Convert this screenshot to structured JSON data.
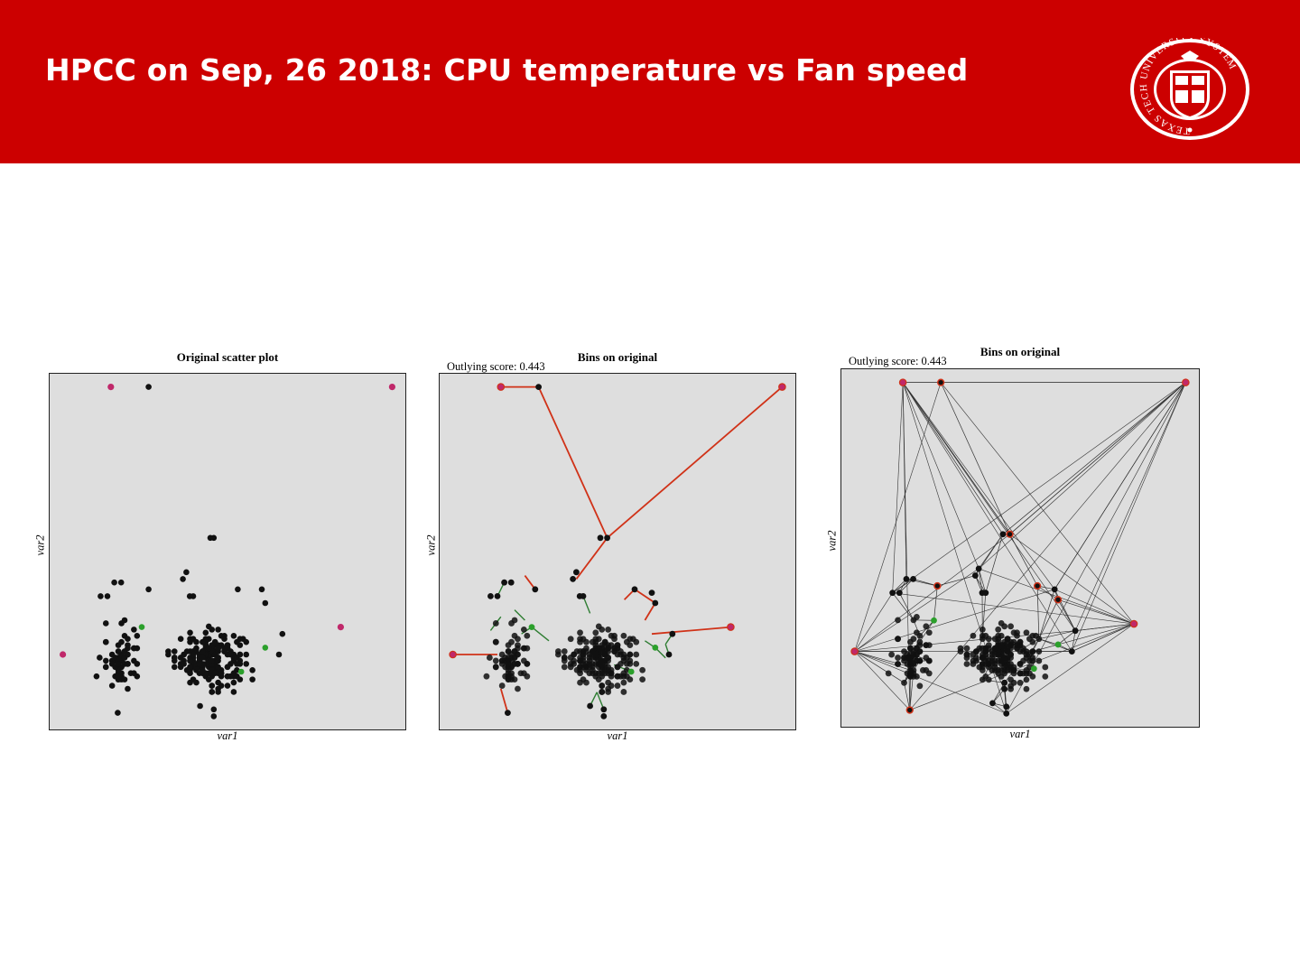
{
  "header": {
    "title": "HPCC on Sep, 26 2018: CPU temperature vs Fan speed",
    "logo": {
      "ring_text": "TEXAS TECH UNIVERSITY SYSTEM",
      "colors": {
        "ring": "#cc0000",
        "background": "#ffffff"
      }
    }
  },
  "colors": {
    "header_bg": "#cc0000",
    "panel_bg": "#dedede",
    "point": "#111111",
    "outlier": "#c0286a",
    "green": "#2ca02c",
    "mst_outlier_edge": "#d03218",
    "mst_edge": "#2e7d32",
    "triangulation_edge": "#333333"
  },
  "chart_data": [
    {
      "type": "scatter",
      "title": "Original scatter plot",
      "xlabel": "var1",
      "ylabel": "var2",
      "xlim": [
        0,
        1
      ],
      "ylim": [
        0,
        1
      ],
      "outliers": [
        [
          0.16,
          0.98
        ],
        [
          0.98,
          0.98
        ],
        [
          0.02,
          0.2
        ],
        [
          0.83,
          0.28
        ]
      ],
      "green_points": [
        [
          0.25,
          0.28
        ],
        [
          0.61,
          0.22
        ],
        [
          0.54,
          0.15
        ]
      ],
      "sparse_points": [
        [
          0.27,
          0.98
        ],
        [
          0.45,
          0.54
        ],
        [
          0.46,
          0.54
        ],
        [
          0.13,
          0.37
        ],
        [
          0.15,
          0.37
        ],
        [
          0.17,
          0.41
        ],
        [
          0.19,
          0.41
        ],
        [
          0.27,
          0.39
        ],
        [
          0.38,
          0.44
        ],
        [
          0.37,
          0.42
        ],
        [
          0.39,
          0.37
        ],
        [
          0.4,
          0.37
        ],
        [
          0.53,
          0.39
        ],
        [
          0.6,
          0.39
        ],
        [
          0.61,
          0.35
        ],
        [
          0.66,
          0.26
        ],
        [
          0.65,
          0.2
        ],
        [
          0.18,
          0.03
        ],
        [
          0.42,
          0.05
        ],
        [
          0.46,
          0.02
        ],
        [
          0.46,
          0.04
        ]
      ],
      "dense_clusters": [
        {
          "center": [
            0.45,
            0.19
          ],
          "spread": [
            0.09,
            0.07
          ],
          "count": 200
        },
        {
          "center": [
            0.19,
            0.19
          ],
          "spread": [
            0.05,
            0.08
          ],
          "count": 75
        }
      ]
    },
    {
      "type": "scatter",
      "title": "Bins on original",
      "subtitle": "Outlying score: 0.443",
      "xlabel": "var1",
      "ylabel": "var2",
      "xlim": [
        0,
        1
      ],
      "ylim": [
        0,
        1
      ],
      "outliers": [
        [
          0.16,
          0.98
        ],
        [
          0.98,
          0.98
        ],
        [
          0.02,
          0.2
        ],
        [
          0.83,
          0.28
        ]
      ],
      "green_points": [
        [
          0.25,
          0.28
        ],
        [
          0.61,
          0.22
        ],
        [
          0.54,
          0.15
        ]
      ],
      "sparse_points": [
        [
          0.27,
          0.98
        ],
        [
          0.45,
          0.54
        ],
        [
          0.47,
          0.54
        ],
        [
          0.13,
          0.37
        ],
        [
          0.15,
          0.37
        ],
        [
          0.17,
          0.41
        ],
        [
          0.19,
          0.41
        ],
        [
          0.26,
          0.39
        ],
        [
          0.38,
          0.44
        ],
        [
          0.37,
          0.42
        ],
        [
          0.39,
          0.37
        ],
        [
          0.4,
          0.37
        ],
        [
          0.55,
          0.39
        ],
        [
          0.61,
          0.35
        ],
        [
          0.66,
          0.26
        ],
        [
          0.65,
          0.2
        ],
        [
          0.18,
          0.03
        ],
        [
          0.42,
          0.05
        ],
        [
          0.46,
          0.02
        ],
        [
          0.46,
          0.04
        ],
        [
          0.6,
          0.38
        ]
      ],
      "dense_clusters": [
        {
          "center": [
            0.45,
            0.19
          ],
          "spread": [
            0.09,
            0.07
          ],
          "count": 200
        },
        {
          "center": [
            0.19,
            0.19
          ],
          "spread": [
            0.05,
            0.08
          ],
          "count": 75
        }
      ],
      "mst_outlier_edges": [
        [
          [
            0.16,
            0.98
          ],
          [
            0.27,
            0.98
          ]
        ],
        [
          [
            0.27,
            0.98
          ],
          [
            0.47,
            0.54
          ]
        ],
        [
          [
            0.98,
            0.98
          ],
          [
            0.47,
            0.54
          ]
        ],
        [
          [
            0.47,
            0.54
          ],
          [
            0.38,
            0.42
          ]
        ],
        [
          [
            0.02,
            0.2
          ],
          [
            0.15,
            0.2
          ]
        ],
        [
          [
            0.83,
            0.28
          ],
          [
            0.6,
            0.26
          ]
        ],
        [
          [
            0.18,
            0.03
          ],
          [
            0.16,
            0.1
          ]
        ],
        [
          [
            0.26,
            0.39
          ],
          [
            0.23,
            0.43
          ]
        ],
        [
          [
            0.55,
            0.39
          ],
          [
            0.52,
            0.36
          ]
        ],
        [
          [
            0.55,
            0.39
          ],
          [
            0.61,
            0.35
          ]
        ],
        [
          [
            0.61,
            0.35
          ],
          [
            0.58,
            0.3
          ]
        ]
      ],
      "mst_edges": [
        [
          [
            0.17,
            0.41
          ],
          [
            0.15,
            0.37
          ]
        ],
        [
          [
            0.25,
            0.28
          ],
          [
            0.22,
            0.26
          ]
        ],
        [
          [
            0.25,
            0.28
          ],
          [
            0.3,
            0.24
          ]
        ],
        [
          [
            0.61,
            0.22
          ],
          [
            0.64,
            0.19
          ]
        ],
        [
          [
            0.61,
            0.22
          ],
          [
            0.58,
            0.24
          ]
        ],
        [
          [
            0.54,
            0.15
          ],
          [
            0.49,
            0.17
          ]
        ],
        [
          [
            0.42,
            0.05
          ],
          [
            0.44,
            0.09
          ]
        ],
        [
          [
            0.46,
            0.04
          ],
          [
            0.44,
            0.09
          ]
        ],
        [
          [
            0.4,
            0.37
          ],
          [
            0.42,
            0.32
          ]
        ],
        [
          [
            0.66,
            0.26
          ],
          [
            0.64,
            0.23
          ]
        ],
        [
          [
            0.65,
            0.2
          ],
          [
            0.64,
            0.23
          ]
        ],
        [
          [
            0.13,
            0.27
          ],
          [
            0.16,
            0.31
          ]
        ],
        [
          [
            0.2,
            0.33
          ],
          [
            0.23,
            0.3
          ]
        ]
      ]
    },
    {
      "type": "scatter",
      "title": "Bins on original",
      "subtitle": "Outlying score: 0.443",
      "xlabel": "var1",
      "ylabel": "var2",
      "xlim": [
        0,
        1
      ],
      "ylim": [
        0,
        1
      ],
      "outliers": [
        [
          0.16,
          0.98
        ],
        [
          0.98,
          0.98
        ],
        [
          0.02,
          0.2
        ],
        [
          0.83,
          0.28
        ]
      ],
      "green_points": [
        [
          0.25,
          0.29
        ],
        [
          0.61,
          0.22
        ],
        [
          0.54,
          0.15
        ]
      ],
      "red_ringed_points": [
        [
          0.27,
          0.98
        ],
        [
          0.47,
          0.54
        ],
        [
          0.18,
          0.03
        ],
        [
          0.26,
          0.39
        ],
        [
          0.55,
          0.39
        ],
        [
          0.61,
          0.35
        ]
      ],
      "sparse_points": [
        [
          0.45,
          0.54
        ],
        [
          0.13,
          0.37
        ],
        [
          0.15,
          0.37
        ],
        [
          0.17,
          0.41
        ],
        [
          0.19,
          0.41
        ],
        [
          0.38,
          0.44
        ],
        [
          0.37,
          0.42
        ],
        [
          0.39,
          0.37
        ],
        [
          0.4,
          0.37
        ],
        [
          0.6,
          0.38
        ],
        [
          0.66,
          0.26
        ],
        [
          0.65,
          0.2
        ],
        [
          0.42,
          0.05
        ],
        [
          0.46,
          0.02
        ],
        [
          0.46,
          0.04
        ]
      ],
      "dense_clusters": [
        {
          "center": [
            0.45,
            0.19
          ],
          "spread": [
            0.09,
            0.07
          ],
          "count": 200
        },
        {
          "center": [
            0.19,
            0.19
          ],
          "spread": [
            0.05,
            0.08
          ],
          "count": 75
        }
      ]
    }
  ]
}
